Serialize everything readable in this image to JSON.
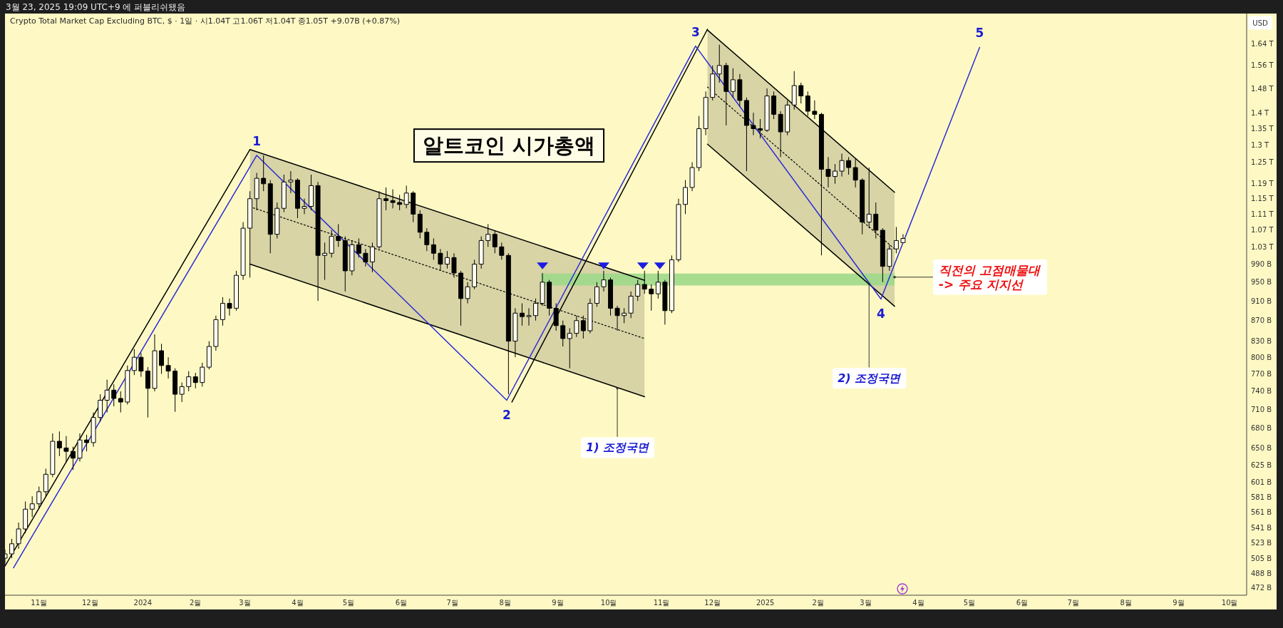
{
  "chart_data": {
    "type": "candlestick",
    "title": "알트코인 시가총액",
    "subtitle": "Crypto Total Market Cap Excluding BTC, $ · 1일 · 시1.04T 고1.06T 저1.04T 종1.05T +9.07B (+0.87%)",
    "ylabel": "USD",
    "color": "#000000",
    "log": "y",
    "xlim": [
      "2023-10-12",
      "2025-10-11"
    ],
    "ylim": [
      464000000000.0,
      1757000000000.0
    ],
    "xticks": [
      {
        "value": "2023-11-01",
        "label": "11월"
      },
      {
        "value": "2023-12-01",
        "label": "12월"
      },
      {
        "value": "2024-01-01",
        "label": "2024"
      },
      {
        "value": "2024-02-01",
        "label": "2월"
      },
      {
        "value": "2024-03-01",
        "label": "3월"
      },
      {
        "value": "2024-04-01",
        "label": "4월"
      },
      {
        "value": "2024-05-01",
        "label": "5월"
      },
      {
        "value": "2024-06-01",
        "label": "6월"
      },
      {
        "value": "2024-07-01",
        "label": "7월"
      },
      {
        "value": "2024-08-01",
        "label": "8월"
      },
      {
        "value": "2024-09-01",
        "label": "9월"
      },
      {
        "value": "2024-10-01",
        "label": "10월"
      },
      {
        "value": "2024-11-01",
        "label": "11월"
      },
      {
        "value": "2024-12-01",
        "label": "12월"
      },
      {
        "value": "2025-01-01",
        "label": "2025"
      },
      {
        "value": "2025-02-01",
        "label": "2월"
      },
      {
        "value": "2025-03-01",
        "label": "3월"
      },
      {
        "value": "2025-04-01",
        "label": "4월"
      },
      {
        "value": "2025-05-01",
        "label": "5월"
      },
      {
        "value": "2025-06-01",
        "label": "6월"
      },
      {
        "value": "2025-07-01",
        "label": "7월"
      },
      {
        "value": "2025-08-01",
        "label": "8월"
      },
      {
        "value": "2025-09-01",
        "label": "9월"
      },
      {
        "value": "2025-10-01",
        "label": "10월"
      }
    ],
    "yticks": [
      {
        "value": 472000000000.0,
        "label": "472 B"
      },
      {
        "value": 488000000000.0,
        "label": "488 B"
      },
      {
        "value": 505000000000.0,
        "label": "505 B"
      },
      {
        "value": 523000000000.0,
        "label": "523 B"
      },
      {
        "value": 541000000000.0,
        "label": "541 B"
      },
      {
        "value": 561000000000.0,
        "label": "561 B"
      },
      {
        "value": 581000000000.0,
        "label": "581 B"
      },
      {
        "value": 601000000000.0,
        "label": "601 B"
      },
      {
        "value": 625000000000.0,
        "label": "625 B"
      },
      {
        "value": 650000000000.0,
        "label": "650 B"
      },
      {
        "value": 680000000000.0,
        "label": "680 B"
      },
      {
        "value": 710000000000.0,
        "label": "710 B"
      },
      {
        "value": 740000000000.0,
        "label": "740 B"
      },
      {
        "value": 770000000000.0,
        "label": "770 B"
      },
      {
        "value": 800000000000.0,
        "label": "800 B"
      },
      {
        "value": 830000000000.0,
        "label": "830 B"
      },
      {
        "value": 870000000000.0,
        "label": "870 B"
      },
      {
        "value": 910000000000.0,
        "label": "910 B"
      },
      {
        "value": 950000000000.0,
        "label": "950 B"
      },
      {
        "value": 990000000000.0,
        "label": "990 B"
      },
      {
        "value": 1030000000000.0,
        "label": "1.03 T"
      },
      {
        "value": 1070000000000.0,
        "label": "1.07 T"
      },
      {
        "value": 1110000000000.0,
        "label": "1.11 T"
      },
      {
        "value": 1150000000000.0,
        "label": "1.15 T"
      },
      {
        "value": 1190000000000.0,
        "label": "1.19 T"
      },
      {
        "value": 1250000000000.0,
        "label": "1.25 T"
      },
      {
        "value": 1300000000000.0,
        "label": "1.3 T"
      },
      {
        "value": 1350000000000.0,
        "label": "1.35 T"
      },
      {
        "value": 1400000000000.0,
        "label": "1.4 T"
      },
      {
        "value": 1480000000000.0,
        "label": "1.48 T"
      },
      {
        "value": 1560000000000.0,
        "label": "1.56 T"
      },
      {
        "value": 1640000000000.0,
        "label": "1.64 T"
      }
    ],
    "x": [
      "2023-10-12",
      "2023-10-16",
      "2023-10-20",
      "2023-10-24",
      "2023-10-28",
      "2023-11-01",
      "2023-11-05",
      "2023-11-09",
      "2023-11-13",
      "2023-11-17",
      "2023-11-21",
      "2023-11-25",
      "2023-11-29",
      "2023-12-03",
      "2023-12-07",
      "2023-12-11",
      "2023-12-15",
      "2023-12-19",
      "2023-12-23",
      "2023-12-27",
      "2023-12-31",
      "2024-01-04",
      "2024-01-08",
      "2024-01-12",
      "2024-01-16",
      "2024-01-20",
      "2024-01-24",
      "2024-01-28",
      "2024-02-01",
      "2024-02-05",
      "2024-02-09",
      "2024-02-13",
      "2024-02-17",
      "2024-02-21",
      "2024-02-25",
      "2024-02-29",
      "2024-03-04",
      "2024-03-08",
      "2024-03-12",
      "2024-03-16",
      "2024-03-20",
      "2024-03-24",
      "2024-03-28",
      "2024-04-01",
      "2024-04-05",
      "2024-04-09",
      "2024-04-13",
      "2024-04-17",
      "2024-04-21",
      "2024-04-25",
      "2024-04-29",
      "2024-05-03",
      "2024-05-07",
      "2024-05-11",
      "2024-05-15",
      "2024-05-19",
      "2024-05-23",
      "2024-05-27",
      "2024-05-31",
      "2024-06-04",
      "2024-06-08",
      "2024-06-12",
      "2024-06-16",
      "2024-06-20",
      "2024-06-24",
      "2024-06-28",
      "2024-07-02",
      "2024-07-06",
      "2024-07-10",
      "2024-07-14",
      "2024-07-18",
      "2024-07-22",
      "2024-07-26",
      "2024-07-30",
      "2024-08-03",
      "2024-08-07",
      "2024-08-11",
      "2024-08-15",
      "2024-08-19",
      "2024-08-23",
      "2024-08-27",
      "2024-08-31",
      "2024-09-04",
      "2024-09-08",
      "2024-09-12",
      "2024-09-16",
      "2024-09-20",
      "2024-09-24",
      "2024-09-28",
      "2024-10-02",
      "2024-10-06",
      "2024-10-10",
      "2024-10-14",
      "2024-10-18",
      "2024-10-22",
      "2024-10-26",
      "2024-10-30",
      "2024-11-03",
      "2024-11-07",
      "2024-11-11",
      "2024-11-15",
      "2024-11-19",
      "2024-11-23",
      "2024-11-27",
      "2024-12-01",
      "2024-12-05",
      "2024-12-09",
      "2024-12-13",
      "2024-12-17",
      "2024-12-21",
      "2024-12-25",
      "2024-12-29",
      "2025-01-02",
      "2025-01-06",
      "2025-01-10",
      "2025-01-14",
      "2025-01-18",
      "2025-01-22",
      "2025-01-26",
      "2025-01-30",
      "2025-02-03",
      "2025-02-07",
      "2025-02-11",
      "2025-02-15",
      "2025-02-19",
      "2025-02-23",
      "2025-02-27",
      "2025-03-03",
      "2025-03-07",
      "2025-03-11",
      "2025-03-15",
      "2025-03-19",
      "2025-03-23"
    ],
    "ohlc": [
      [
        505000000000.0,
        515000000000.0,
        498000000000.0,
        510000000000.0
      ],
      [
        510000000000.0,
        528000000000.0,
        505000000000.0,
        522000000000.0
      ],
      [
        522000000000.0,
        548000000000.0,
        516000000000.0,
        540000000000.0
      ],
      [
        540000000000.0,
        575000000000.0,
        535000000000.0,
        565000000000.0
      ],
      [
        565000000000.0,
        582000000000.0,
        555000000000.0,
        572000000000.0
      ],
      [
        572000000000.0,
        595000000000.0,
        566000000000.0,
        588000000000.0
      ],
      [
        588000000000.0,
        620000000000.0,
        582000000000.0,
        612000000000.0
      ],
      [
        612000000000.0,
        672000000000.0,
        608000000000.0,
        660000000000.0
      ],
      [
        660000000000.0,
        675000000000.0,
        638000000000.0,
        650000000000.0
      ],
      [
        650000000000.0,
        668000000000.0,
        630000000000.0,
        645000000000.0
      ],
      [
        645000000000.0,
        652000000000.0,
        618000000000.0,
        635000000000.0
      ],
      [
        635000000000.0,
        672000000000.0,
        630000000000.0,
        662000000000.0
      ],
      [
        662000000000.0,
        670000000000.0,
        645000000000.0,
        658000000000.0
      ],
      [
        658000000000.0,
        705000000000.0,
        652000000000.0,
        697000000000.0
      ],
      [
        697000000000.0,
        735000000000.0,
        690000000000.0,
        725000000000.0
      ],
      [
        725000000000.0,
        760000000000.0,
        705000000000.0,
        742000000000.0
      ],
      [
        742000000000.0,
        752000000000.0,
        715000000000.0,
        728000000000.0
      ],
      [
        728000000000.0,
        740000000000.0,
        705000000000.0,
        722000000000.0
      ],
      [
        722000000000.0,
        785000000000.0,
        718000000000.0,
        776000000000.0
      ],
      [
        776000000000.0,
        815000000000.0,
        768000000000.0,
        800000000000.0
      ],
      [
        800000000000.0,
        808000000000.0,
        765000000000.0,
        775000000000.0
      ],
      [
        775000000000.0,
        782000000000.0,
        697000000000.0,
        745000000000.0
      ],
      [
        745000000000.0,
        843000000000.0,
        740000000000.0,
        812000000000.0
      ],
      [
        812000000000.0,
        825000000000.0,
        770000000000.0,
        785000000000.0
      ],
      [
        785000000000.0,
        800000000000.0,
        762000000000.0,
        775000000000.0
      ],
      [
        775000000000.0,
        780000000000.0,
        706000000000.0,
        735000000000.0
      ],
      [
        735000000000.0,
        755000000000.0,
        722000000000.0,
        748000000000.0
      ],
      [
        748000000000.0,
        775000000000.0,
        740000000000.0,
        765000000000.0
      ],
      [
        765000000000.0,
        772000000000.0,
        745000000000.0,
        755000000000.0
      ],
      [
        755000000000.0,
        790000000000.0,
        748000000000.0,
        782000000000.0
      ],
      [
        782000000000.0,
        830000000000.0,
        778000000000.0,
        820000000000.0
      ],
      [
        820000000000.0,
        880000000000.0,
        812000000000.0,
        872000000000.0
      ],
      [
        872000000000.0,
        918000000000.0,
        860000000000.0,
        905000000000.0
      ],
      [
        905000000000.0,
        915000000000.0,
        880000000000.0,
        895000000000.0
      ],
      [
        895000000000.0,
        975000000000.0,
        890000000000.0,
        965000000000.0
      ],
      [
        965000000000.0,
        1090000000000.0,
        955000000000.0,
        1075000000000.0
      ],
      [
        1075000000000.0,
        1170000000000.0,
        960000000000.0,
        1150000000000.0
      ],
      [
        1150000000000.0,
        1220000000000.0,
        1120000000000.0,
        1205000000000.0
      ],
      [
        1205000000000.0,
        1270000000000.0,
        1170000000000.0,
        1190000000000.0
      ],
      [
        1190000000000.0,
        1200000000000.0,
        1015000000000.0,
        1060000000000.0
      ],
      [
        1060000000000.0,
        1140000000000.0,
        1050000000000.0,
        1125000000000.0
      ],
      [
        1125000000000.0,
        1215000000000.0,
        1115000000000.0,
        1195000000000.0
      ],
      [
        1195000000000.0,
        1225000000000.0,
        1165000000000.0,
        1200000000000.0
      ],
      [
        1200000000000.0,
        1205000000000.0,
        1100000000000.0,
        1125000000000.0
      ],
      [
        1125000000000.0,
        1150000000000.0,
        1110000000000.0,
        1130000000000.0
      ],
      [
        1130000000000.0,
        1215000000000.0,
        1120000000000.0,
        1185000000000.0
      ],
      [
        1185000000000.0,
        1195000000000.0,
        910000000000.0,
        1010000000000.0
      ],
      [
        1010000000000.0,
        1040000000000.0,
        955000000000.0,
        1015000000000.0
      ],
      [
        1015000000000.0,
        1070000000000.0,
        1005000000000.0,
        1055000000000.0
      ],
      [
        1055000000000.0,
        1085000000000.0,
        1030000000000.0,
        1045000000000.0
      ],
      [
        1045000000000.0,
        1055000000000.0,
        930000000000.0,
        975000000000.0
      ],
      [
        975000000000.0,
        1045000000000.0,
        965000000000.0,
        1035000000000.0
      ],
      [
        1035000000000.0,
        1050000000000.0,
        1005000000000.0,
        1015000000000.0
      ],
      [
        1015000000000.0,
        1025000000000.0,
        985000000000.0,
        995000000000.0
      ],
      [
        995000000000.0,
        1040000000000.0,
        972000000000.0,
        1030000000000.0
      ],
      [
        1030000000000.0,
        1170000000000.0,
        1025000000000.0,
        1150000000000.0
      ],
      [
        1150000000000.0,
        1180000000000.0,
        1120000000000.0,
        1145000000000.0
      ],
      [
        1145000000000.0,
        1175000000000.0,
        1125000000000.0,
        1140000000000.0
      ],
      [
        1140000000000.0,
        1160000000000.0,
        1120000000000.0,
        1135000000000.0
      ],
      [
        1135000000000.0,
        1185000000000.0,
        1125000000000.0,
        1165000000000.0
      ],
      [
        1165000000000.0,
        1170000000000.0,
        1090000000000.0,
        1110000000000.0
      ],
      [
        1110000000000.0,
        1120000000000.0,
        1050000000000.0,
        1065000000000.0
      ],
      [
        1065000000000.0,
        1075000000000.0,
        1020000000000.0,
        1035000000000.0
      ],
      [
        1035000000000.0,
        1050000000000.0,
        1000000000000.0,
        1015000000000.0
      ],
      [
        1015000000000.0,
        1025000000000.0,
        975000000000.0,
        990000000000.0
      ],
      [
        990000000000.0,
        1020000000000.0,
        980000000000.0,
        1005000000000.0
      ],
      [
        1005000000000.0,
        1015000000000.0,
        960000000000.0,
        970000000000.0
      ],
      [
        970000000000.0,
        975000000000.0,
        860000000000.0,
        915000000000.0
      ],
      [
        915000000000.0,
        950000000000.0,
        905000000000.0,
        940000000000.0
      ],
      [
        940000000000.0,
        1000000000000.0,
        935000000000.0,
        990000000000.0
      ],
      [
        990000000000.0,
        1055000000000.0,
        980000000000.0,
        1045000000000.0
      ],
      [
        1045000000000.0,
        1085000000000.0,
        1030000000000.0,
        1060000000000.0
      ],
      [
        1060000000000.0,
        1070000000000.0,
        1015000000000.0,
        1030000000000.0
      ],
      [
        1030000000000.0,
        1040000000000.0,
        1000000000000.0,
        1010000000000.0
      ],
      [
        1010000000000.0,
        1015000000000.0,
        735000000000.0,
        830000000000.0
      ],
      [
        830000000000.0,
        895000000000.0,
        800000000000.0,
        885000000000.0
      ],
      [
        885000000000.0,
        905000000000.0,
        860000000000.0,
        878000000000.0
      ],
      [
        878000000000.0,
        895000000000.0,
        860000000000.0,
        880000000000.0
      ],
      [
        880000000000.0,
        915000000000.0,
        870000000000.0,
        905000000000.0
      ],
      [
        905000000000.0,
        970000000000.0,
        900000000000.0,
        950000000000.0
      ],
      [
        950000000000.0,
        955000000000.0,
        880000000000.0,
        895000000000.0
      ],
      [
        895000000000.0,
        905000000000.0,
        850000000000.0,
        860000000000.0
      ],
      [
        860000000000.0,
        870000000000.0,
        820000000000.0,
        835000000000.0
      ],
      [
        835000000000.0,
        855000000000.0,
        780000000000.0,
        845000000000.0
      ],
      [
        845000000000.0,
        880000000000.0,
        838000000000.0,
        870000000000.0
      ],
      [
        870000000000.0,
        880000000000.0,
        835000000000.0,
        850000000000.0
      ],
      [
        850000000000.0,
        915000000000.0,
        845000000000.0,
        905000000000.0
      ],
      [
        905000000000.0,
        950000000000.0,
        898000000000.0,
        940000000000.0
      ],
      [
        940000000000.0,
        975000000000.0,
        930000000000.0,
        955000000000.0
      ],
      [
        955000000000.0,
        960000000000.0,
        880000000000.0,
        895000000000.0
      ],
      [
        895000000000.0,
        900000000000.0,
        850000000000.0,
        880000000000.0
      ],
      [
        880000000000.0,
        895000000000.0,
        865000000000.0,
        885000000000.0
      ],
      [
        885000000000.0,
        930000000000.0,
        875000000000.0,
        920000000000.0
      ],
      [
        920000000000.0,
        955000000000.0,
        910000000000.0,
        945000000000.0
      ],
      [
        945000000000.0,
        975000000000.0,
        925000000000.0,
        935000000000.0
      ],
      [
        935000000000.0,
        945000000000.0,
        890000000000.0,
        925000000000.0
      ],
      [
        925000000000.0,
        975000000000.0,
        915000000000.0,
        950000000000.0
      ],
      [
        950000000000.0,
        955000000000.0,
        862000000000.0,
        890000000000.0
      ],
      [
        890000000000.0,
        1010000000000.0,
        885000000000.0,
        1000000000000.0
      ],
      [
        1000000000000.0,
        1150000000000.0,
        995000000000.0,
        1135000000000.0
      ],
      [
        1135000000000.0,
        1200000000000.0,
        1110000000000.0,
        1180000000000.0
      ],
      [
        1180000000000.0,
        1250000000000.0,
        1170000000000.0,
        1235000000000.0
      ],
      [
        1235000000000.0,
        1390000000000.0,
        1225000000000.0,
        1350000000000.0
      ],
      [
        1350000000000.0,
        1470000000000.0,
        1330000000000.0,
        1450000000000.0
      ],
      [
        1450000000000.0,
        1560000000000.0,
        1440000000000.0,
        1530000000000.0
      ],
      [
        1530000000000.0,
        1636000000000.0,
        1500000000000.0,
        1560000000000.0
      ],
      [
        1560000000000.0,
        1570000000000.0,
        1360000000000.0,
        1470000000000.0
      ],
      [
        1470000000000.0,
        1550000000000.0,
        1450000000000.0,
        1510000000000.0
      ],
      [
        1510000000000.0,
        1530000000000.0,
        1420000000000.0,
        1440000000000.0
      ],
      [
        1440000000000.0,
        1450000000000.0,
        1225000000000.0,
        1360000000000.0
      ],
      [
        1360000000000.0,
        1400000000000.0,
        1330000000000.0,
        1350000000000.0
      ],
      [
        1350000000000.0,
        1380000000000.0,
        1320000000000.0,
        1345000000000.0
      ],
      [
        1345000000000.0,
        1480000000000.0,
        1340000000000.0,
        1455000000000.0
      ],
      [
        1455000000000.0,
        1470000000000.0,
        1380000000000.0,
        1395000000000.0
      ],
      [
        1395000000000.0,
        1405000000000.0,
        1265000000000.0,
        1340000000000.0
      ],
      [
        1340000000000.0,
        1440000000000.0,
        1330000000000.0,
        1425000000000.0
      ],
      [
        1425000000000.0,
        1540000000000.0,
        1410000000000.0,
        1490000000000.0
      ],
      [
        1490000000000.0,
        1500000000000.0,
        1430000000000.0,
        1455000000000.0
      ],
      [
        1455000000000.0,
        1470000000000.0,
        1390000000000.0,
        1405000000000.0
      ],
      [
        1405000000000.0,
        1440000000000.0,
        1380000000000.0,
        1395000000000.0
      ],
      [
        1395000000000.0,
        1400000000000.0,
        1010000000000.0,
        1230000000000.0
      ],
      [
        1230000000000.0,
        1265000000000.0,
        1180000000000.0,
        1210000000000.0
      ],
      [
        1210000000000.0,
        1245000000000.0,
        1190000000000.0,
        1225000000000.0
      ],
      [
        1225000000000.0,
        1275000000000.0,
        1210000000000.0,
        1255000000000.0
      ],
      [
        1255000000000.0,
        1265000000000.0,
        1215000000000.0,
        1235000000000.0
      ],
      [
        1235000000000.0,
        1260000000000.0,
        1180000000000.0,
        1200000000000.0
      ],
      [
        1200000000000.0,
        1205000000000.0,
        1060000000000.0,
        1090000000000.0
      ],
      [
        1090000000000.0,
        1235000000000.0,
        1075000000000.0,
        1110000000000.0
      ],
      [
        1110000000000.0,
        1140000000000.0,
        1050000000000.0,
        1070000000000.0
      ],
      [
        1070000000000.0,
        1075000000000.0,
        950000000000.0,
        985000000000.0
      ],
      [
        985000000000.0,
        1035000000000.0,
        975000000000.0,
        1025000000000.0
      ],
      [
        1025000000000.0,
        1078000000000.0,
        1015000000000.0,
        1045000000000.0
      ],
      [
        1040000000000.0,
        1060000000000.0,
        1040000000000.0,
        1050000000000.0
      ]
    ],
    "series": [
      {
        "type": "line",
        "color": "#000000",
        "x": [
          "2023-10-12",
          "2024-03-04"
        ],
        "values": [
          496000000000.0,
          1287000000000.0
        ]
      },
      {
        "type": "line",
        "color": "#000000",
        "x": [
          "2024-08-05",
          "2024-11-28"
        ],
        "values": [
          722000000000.0,
          1695000000000.0
        ]
      },
      {
        "type": "line",
        "color": "#000000",
        "x": [
          "2024-03-04",
          "2024-10-22"
        ],
        "values": [
          1287000000000.0,
          954000000000.0
        ]
      },
      {
        "type": "line",
        "color": "#000000",
        "x": [
          "2024-03-04",
          "2024-10-22"
        ],
        "values": [
          990000000000.0,
          731000000000.0
        ]
      },
      {
        "type": "line",
        "color": "#000000",
        "line_style": "dotted",
        "x": [
          "2024-03-04",
          "2024-10-22"
        ],
        "values": [
          1129000000000.0,
          835000000000.0
        ],
        "lower": [
          990000000000.0,
          731000000000.0
        ],
        "upper": [
          1287000000000.0,
          954000000000.0
        ]
      },
      {
        "type": "line",
        "color": "#000000",
        "x": [
          "2024-11-28",
          "2025-03-18"
        ],
        "values": [
          1692000000000.0,
          1167000000000.0
        ]
      },
      {
        "type": "line",
        "color": "#000000",
        "x": [
          "2024-11-28",
          "2025-03-18"
        ],
        "values": [
          1303000000000.0,
          899000000000.0
        ]
      },
      {
        "type": "line",
        "color": "#000000",
        "line_style": "dotted",
        "x": [
          "2024-11-28",
          "2025-03-18"
        ],
        "values": [
          1485000000000.0,
          1025000000000.0
        ],
        "lower": [
          1303000000000.0,
          899000000000.0
        ],
        "upper": [
          1692000000000.0,
          1167000000000.0
        ]
      },
      {
        "type": "line",
        "color": "#9ed98b",
        "x": [
          "2024-08-22",
          "2025-03-18"
        ],
        "values": [
          null,
          null
        ],
        "lower": [
          943000000000.0,
          943000000000.0
        ],
        "upper": [
          969000000000.0,
          969000000000.0
        ]
      },
      {
        "type": "line",
        "color": "#2b2bd9",
        "x": [
          "2023-10-17",
          "2024-03-08",
          "2024-08-02",
          "2024-11-21",
          "2025-03-10",
          "2025-05-07"
        ],
        "values": [
          494000000000.0,
          1270000000000.0,
          725000000000.0,
          1631000000000.0,
          914000000000.0,
          1626000000000.0
        ]
      },
      {
        "type": "scatter",
        "color": "#1c1ce0",
        "marker": "triangle",
        "x": [
          "2024-08-23",
          "2024-09-28",
          "2024-10-21",
          "2024-10-31"
        ],
        "values": [
          986000000000.0,
          986000000000.0,
          986000000000.0,
          986000000000.0
        ]
      }
    ],
    "annotations": [
      "3월 23, 2025 19:09 UTC+9 에 퍼블리쉬됐음",
      {
        "text": "1",
        "x": "2024-03-08",
        "y": 1270000000000.0
      },
      {
        "text": "2",
        "x": "2024-08-02",
        "y": 725000000000.0
      },
      {
        "text": "3",
        "x": "2024-11-21",
        "y": 1631000000000.0
      },
      {
        "text": "4",
        "x": "2025-03-10",
        "y": 914000000000.0
      },
      {
        "text": "5",
        "x": "2025-05-07",
        "y": 1626000000000.0
      },
      {
        "text": "1) 조정국면",
        "x": "2024-10-06",
        "y": 745000000000.0
      },
      {
        "text": "2) 조정국면",
        "x": "2025-03-03",
        "y": 946000000000.0
      },
      {
        "text": "직전의 고점매물대\n-> 주요 지지선",
        "x": "2025-03-18",
        "y": 961000000000.0
      }
    ]
  }
}
